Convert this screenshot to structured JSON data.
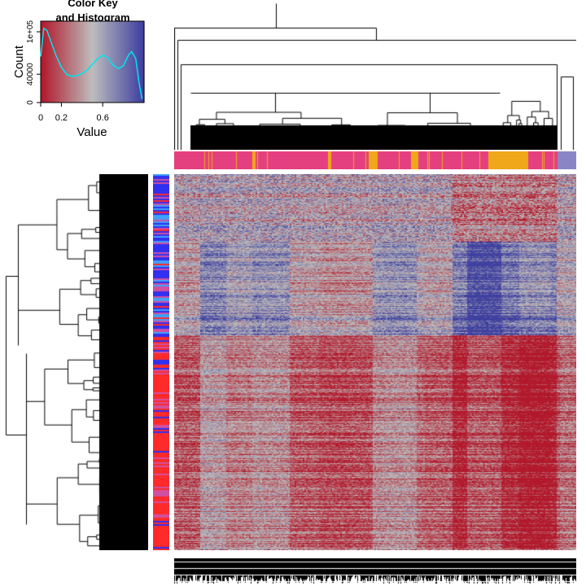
{
  "chart_data": {
    "type": "heatmap",
    "color_key": {
      "title_line1": "Color Key",
      "title_line2": "and Histogram",
      "xlabel": "Value",
      "ylabel": "Count",
      "xticks": [
        "0",
        "0.2",
        "0.6"
      ],
      "xtick_values": [
        0,
        0.2,
        0.6
      ],
      "yticks": [
        "0",
        "40000",
        "1e+05"
      ],
      "ytick_values": [
        0,
        40000,
        100000
      ],
      "xlim": [
        0,
        1
      ],
      "ylim": [
        0,
        115000
      ],
      "colormap": [
        "#b2182b",
        "#bdbdbd",
        "#3f3f9f"
      ],
      "histogram_density_line": {
        "color": "#00e5ee",
        "x": [
          0.0,
          0.03,
          0.06,
          0.1,
          0.15,
          0.2,
          0.25,
          0.3,
          0.35,
          0.4,
          0.45,
          0.5,
          0.55,
          0.6,
          0.65,
          0.7,
          0.75,
          0.8,
          0.85,
          0.88,
          0.92,
          0.95,
          0.98
        ],
        "y": [
          65000,
          105000,
          102000,
          86000,
          66000,
          50000,
          40000,
          37000,
          38000,
          41000,
          46000,
          54000,
          62000,
          67000,
          63000,
          53000,
          48000,
          52000,
          67000,
          72000,
          62000,
          30000,
          5000
        ]
      }
    },
    "heatmap": {
      "row_count": 440,
      "column_count": 440,
      "cell_colors": [
        "#b2182b",
        "#bdbdbd",
        "#5656a8"
      ]
    },
    "column_side_colors": {
      "colors": [
        "#e4407f",
        "#f0a81a",
        "#8a86c6"
      ]
    },
    "row_side_colors": {
      "colors": [
        "#3030f0",
        "#ff2a2a",
        "#d050a0",
        "#40a0ff"
      ]
    },
    "dendrogram": {
      "line_color": "#000000"
    }
  }
}
